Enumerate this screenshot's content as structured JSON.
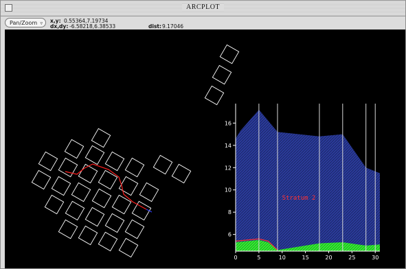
{
  "window": {
    "title": "ARCPLOT"
  },
  "toolbar": {
    "mode": "Pan/Zoom",
    "xy_label": "x,y:",
    "xy_value": "0.55364,7.19734",
    "dxdy_label": "dx,dy:",
    "dxdy_value": "-6.58218,6.38533",
    "dist_label": "dist:",
    "dist_value": "9.17046"
  },
  "chart_data": {
    "type": "area",
    "annotation": "Stratum 2",
    "x_ticks": [
      0,
      5,
      10,
      15,
      20,
      25,
      30
    ],
    "y_ticks": [
      6,
      8,
      10,
      12,
      14,
      16
    ],
    "xlim": [
      0,
      31
    ],
    "ylim": [
      4.5,
      17.5
    ],
    "vertical_lines": [
      5,
      9,
      18,
      23,
      28,
      30
    ],
    "series": [
      {
        "color": "#2a3a9a",
        "x": [
          0,
          0,
          1,
          5,
          9,
          18,
          23,
          28,
          31,
          31
        ],
        "y": [
          4.5,
          14.6,
          15.3,
          17.2,
          15.2,
          14.8,
          15.0,
          12.0,
          11.5,
          4.5
        ]
      },
      {
        "color": "#33ee33",
        "x": [
          0,
          0,
          5,
          7,
          9,
          18,
          23,
          28,
          31,
          31
        ],
        "y": [
          4.5,
          5.3,
          5.5,
          5.3,
          4.6,
          5.2,
          5.3,
          5.0,
          5.1,
          4.5
        ]
      },
      {
        "color": "#ff3333",
        "x": [
          0,
          5,
          7,
          9
        ],
        "y": [
          5.4,
          5.6,
          5.4,
          4.6
        ]
      }
    ]
  }
}
